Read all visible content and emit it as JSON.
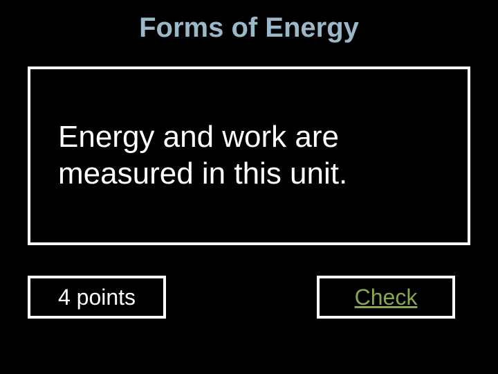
{
  "title": {
    "text": "Forms of Energy",
    "color": "#9bb8c9",
    "fontsize": 40
  },
  "question": {
    "text": "Energy and work are measured in this unit.",
    "color": "#ffffff",
    "fontsize": 44,
    "border_color": "#ffffff"
  },
  "points": {
    "label": "4 points",
    "color": "#ffffff",
    "fontsize": 32,
    "border_color": "#ffffff"
  },
  "check": {
    "label": "Check",
    "color": "#86a74e",
    "fontsize": 32,
    "border_color": "#ffffff",
    "underline": true
  },
  "background_color": "#000000"
}
